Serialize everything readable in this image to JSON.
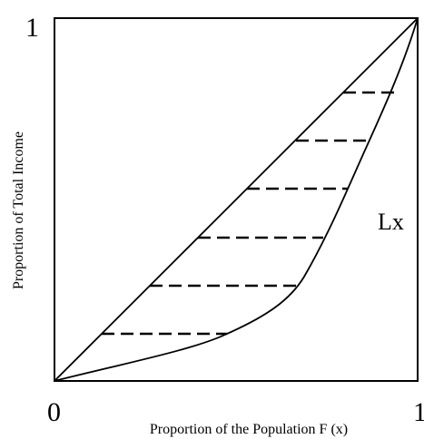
{
  "y_axis_max": "1",
  "origin": "0",
  "x_axis_max": "1",
  "x_axis_label": "Proportion of the Population F (x)",
  "y_axis_label": "Proportion of Total Income",
  "curve_label": "Lx"
}
